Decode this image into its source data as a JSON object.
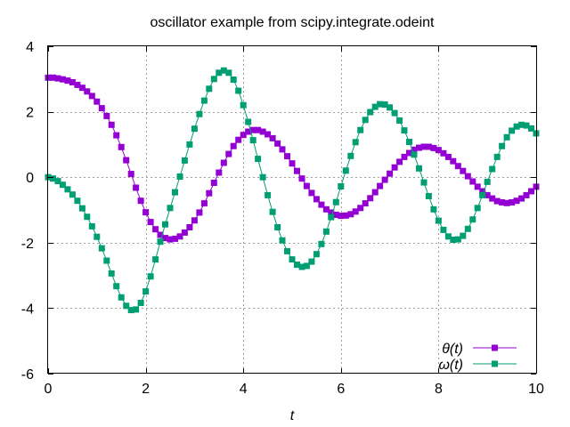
{
  "chart_data": {
    "type": "line",
    "title": "oscillator example from scipy.integrate.odeint",
    "xlabel": "t",
    "ylabel": "",
    "xlim": [
      0,
      10
    ],
    "ylim": [
      -6,
      4
    ],
    "xticks": [
      "0",
      "2",
      "4",
      "6",
      "8",
      "10"
    ],
    "yticks": [
      "-6",
      "-4",
      "-2",
      "0",
      "2",
      "4"
    ],
    "grid": true,
    "legend_position": "bottom-right",
    "x": [
      0.0,
      0.1,
      0.2,
      0.3,
      0.4,
      0.5,
      0.6,
      0.7,
      0.8,
      0.9,
      1.0,
      1.1,
      1.2,
      1.3,
      1.4,
      1.5,
      1.6,
      1.7,
      1.8,
      1.9,
      2.0,
      2.1,
      2.2,
      2.3,
      2.4,
      2.5,
      2.6,
      2.7,
      2.8,
      2.9,
      3.0,
      3.1,
      3.2,
      3.3,
      3.4,
      3.5,
      3.6,
      3.7,
      3.8,
      3.9,
      4.0,
      4.1,
      4.2,
      4.3,
      4.4,
      4.5,
      4.6,
      4.7,
      4.8,
      4.9,
      5.0,
      5.1,
      5.2,
      5.3,
      5.4,
      5.5,
      5.6,
      5.7,
      5.8,
      5.9,
      6.0,
      6.1,
      6.2,
      6.3,
      6.4,
      6.5,
      6.6,
      6.7,
      6.8,
      6.9,
      7.0,
      7.1,
      7.2,
      7.3,
      7.4,
      7.5,
      7.6,
      7.7,
      7.8,
      7.9,
      8.0,
      8.1,
      8.2,
      8.3,
      8.4,
      8.5,
      8.6,
      8.7,
      8.8,
      8.9,
      9.0,
      9.1,
      9.2,
      9.3,
      9.4,
      9.5,
      9.6,
      9.7,
      9.8,
      9.9,
      10.0
    ],
    "series": [
      {
        "name": "θ(t)",
        "color": "#9400d3",
        "values": [
          3.04,
          3.04,
          3.02,
          2.99,
          2.95,
          2.9,
          2.82,
          2.73,
          2.62,
          2.48,
          2.31,
          2.11,
          1.87,
          1.6,
          1.28,
          0.92,
          0.52,
          0.1,
          -0.32,
          -0.72,
          -1.07,
          -1.37,
          -1.59,
          -1.76,
          -1.86,
          -1.9,
          -1.88,
          -1.81,
          -1.69,
          -1.53,
          -1.32,
          -1.08,
          -0.8,
          -0.49,
          -0.17,
          0.14,
          0.44,
          0.71,
          0.95,
          1.14,
          1.29,
          1.39,
          1.44,
          1.44,
          1.39,
          1.31,
          1.19,
          1.03,
          0.85,
          0.64,
          0.42,
          0.19,
          -0.04,
          -0.27,
          -0.48,
          -0.67,
          -0.84,
          -0.98,
          -1.08,
          -1.15,
          -1.18,
          -1.17,
          -1.13,
          -1.05,
          -0.94,
          -0.8,
          -0.64,
          -0.46,
          -0.27,
          -0.08,
          0.11,
          0.3,
          0.47,
          0.62,
          0.74,
          0.84,
          0.9,
          0.93,
          0.93,
          0.89,
          0.83,
          0.73,
          0.62,
          0.49,
          0.34,
          0.19,
          0.03,
          -0.13,
          -0.29,
          -0.43,
          -0.55,
          -0.65,
          -0.73,
          -0.77,
          -0.79,
          -0.77,
          -0.72,
          -0.65,
          -0.55,
          -0.43,
          -0.29
        ]
      },
      {
        "name": "ω(t)",
        "color": "#009e73",
        "values": [
          0.0,
          -0.04,
          -0.12,
          -0.23,
          -0.37,
          -0.53,
          -0.72,
          -0.95,
          -1.21,
          -1.5,
          -1.82,
          -2.17,
          -2.55,
          -2.94,
          -3.33,
          -3.67,
          -3.93,
          -4.06,
          -4.04,
          -3.84,
          -3.49,
          -3.03,
          -2.51,
          -1.97,
          -1.44,
          -0.94,
          -0.46,
          0.02,
          0.51,
          1.0,
          1.48,
          1.93,
          2.34,
          2.7,
          3.0,
          3.19,
          3.26,
          3.19,
          2.98,
          2.64,
          2.2,
          1.69,
          1.13,
          0.56,
          0.0,
          -0.55,
          -1.06,
          -1.53,
          -1.93,
          -2.26,
          -2.51,
          -2.67,
          -2.74,
          -2.71,
          -2.58,
          -2.35,
          -2.04,
          -1.66,
          -1.22,
          -0.76,
          -0.28,
          0.2,
          0.65,
          1.07,
          1.44,
          1.75,
          1.99,
          2.15,
          2.23,
          2.22,
          2.13,
          1.96,
          1.73,
          1.43,
          1.08,
          0.69,
          0.27,
          -0.16,
          -0.58,
          -0.98,
          -1.33,
          -1.61,
          -1.81,
          -1.91,
          -1.9,
          -1.79,
          -1.58,
          -1.29,
          -0.94,
          -0.55,
          -0.14,
          0.25,
          0.62,
          0.95,
          1.22,
          1.42,
          1.55,
          1.6,
          1.58,
          1.49,
          1.34
        ]
      }
    ]
  }
}
